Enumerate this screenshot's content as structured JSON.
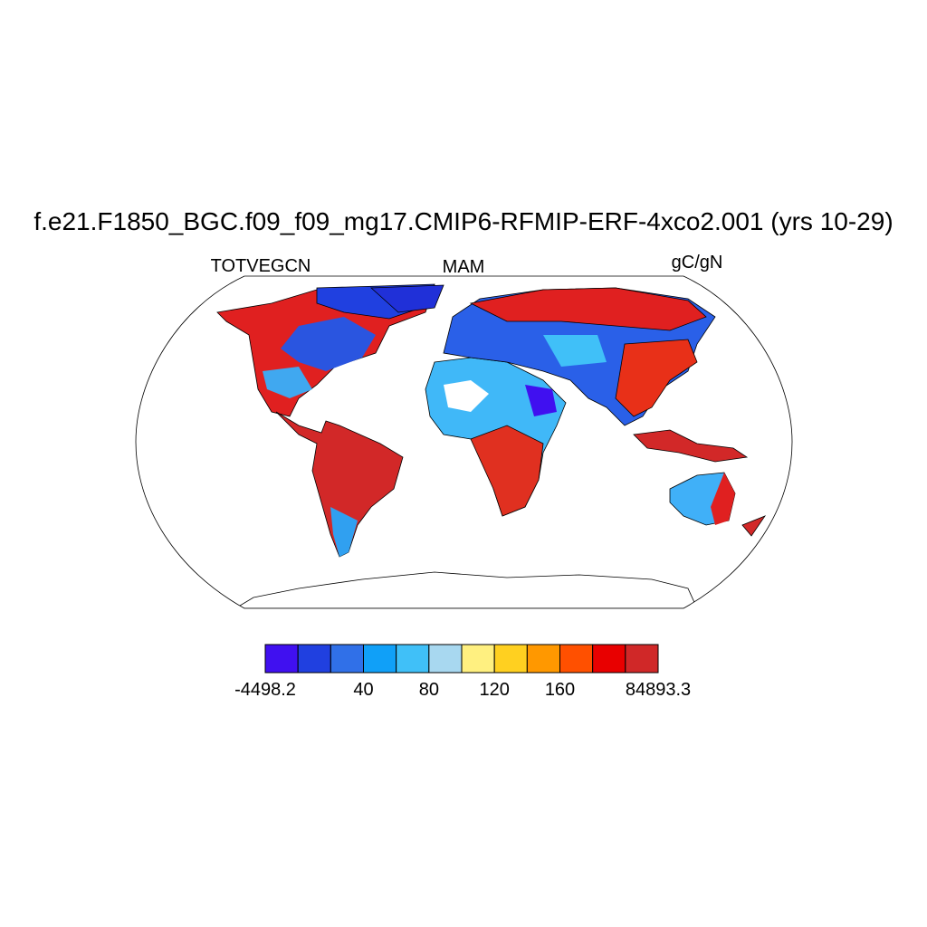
{
  "title": "f.e21.F1850_BGC.f09_f09_mg17.CMIP6-RFMIP-ERF-4xco2.001 (yrs 10-29)",
  "left_label": "TOTVEGCN",
  "center_label": "MAM",
  "right_label": "gC/gN",
  "colorbar": {
    "colors": [
      "#4010f0",
      "#2040e0",
      "#3070e8",
      "#10a0f8",
      "#40c0f8",
      "#a8d8f0",
      "#fff080",
      "#ffd020",
      "#ff9800",
      "#ff5000",
      "#e80000",
      "#d02828"
    ],
    "labels": [
      -4498.2,
      40,
      80,
      120,
      160,
      84893.3
    ]
  }
}
